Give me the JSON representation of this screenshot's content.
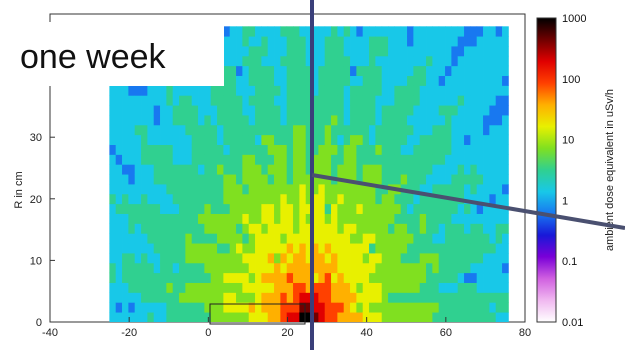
{
  "overlay": {
    "caption": "one week"
  },
  "chart_data": {
    "type": "heatmap",
    "title": "",
    "xlabel": "",
    "ylabel": "R in cm",
    "xlim": [
      -40,
      80
    ],
    "ylim": [
      0,
      50
    ],
    "x_ticks": [
      -40,
      -20,
      0,
      20,
      40,
      60,
      80
    ],
    "y_ticks": [
      0,
      10,
      20,
      30
    ],
    "colorbar": {
      "label": "ambient dose equivalent in uSv/h",
      "scale": "log",
      "range": [
        0.01,
        1000
      ],
      "ticks": [
        {
          "value": 1000,
          "label": "1000"
        },
        {
          "value": 100,
          "label": "100"
        },
        {
          "value": 10,
          "label": "10"
        },
        {
          "value": 1,
          "label": "1"
        },
        {
          "value": 0.1,
          "label": "0.1"
        },
        {
          "value": 0.01,
          "label": "0.01"
        }
      ],
      "colors": [
        "#ffffff",
        "#f0b8f0",
        "#d060e0",
        "#7a00d8",
        "#1818d8",
        "#1878f0",
        "#18c8e8",
        "#30d090",
        "#80e020",
        "#e8f000",
        "#ffb000",
        "#ff4000",
        "#e00000",
        "#700000",
        "#000000"
      ]
    },
    "field": {
      "x_range": [
        -25,
        75
      ],
      "y_range": [
        0,
        48
      ],
      "source_position": [
        25,
        0
      ],
      "source_dose": 1000,
      "min_dose": 0.05
    },
    "grid": false
  },
  "annotations": {
    "vertical_line_x": 25
  }
}
